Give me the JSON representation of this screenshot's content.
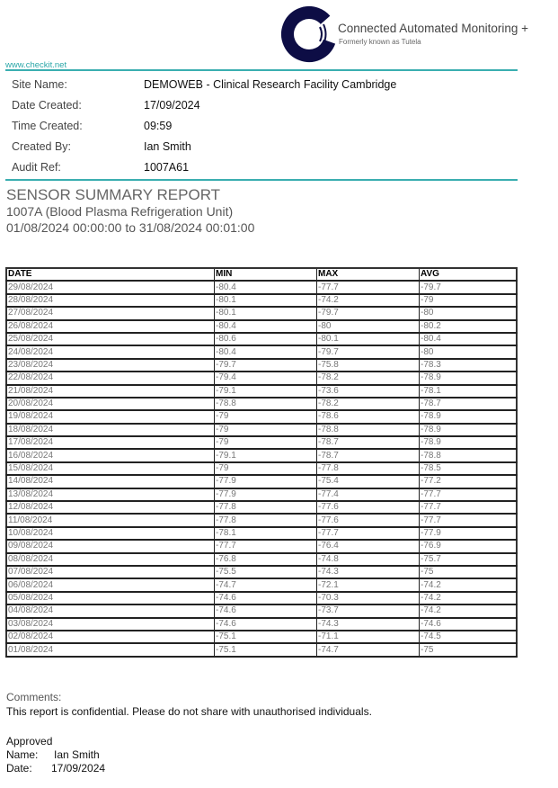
{
  "header": {
    "brand": "Connected Automated Monitoring +",
    "brand_sub": "Formerly known as Tutela",
    "website": "www.checkit.net",
    "accent": "#3aaeb0",
    "logo_color": "#0d0d45"
  },
  "info": [
    {
      "label": "Site Name:",
      "value": "DEMOWEB - Clinical Research Facility Cambridge"
    },
    {
      "label": "Date Created:",
      "value": "17/09/2024"
    },
    {
      "label": "Time Created:",
      "value": "09:59"
    },
    {
      "label": "Created By:",
      "value": "Ian Smith"
    },
    {
      "label": "Audit Ref:",
      "value": "1007A61"
    }
  ],
  "report": {
    "title": "SENSOR SUMMARY REPORT",
    "sensor": "1007A (Blood Plasma Refrigeration Unit)",
    "range": "01/08/2024 00:00:00 to 31/08/2024 00:01:00"
  },
  "table": {
    "headers": [
      "DATE",
      "MIN",
      "MAX",
      "AVG"
    ],
    "rows": [
      [
        "29/08/2024",
        "-80.4",
        "-77.7",
        "-79.7"
      ],
      [
        "28/08/2024",
        "-80.1",
        "-74.2",
        "-79"
      ],
      [
        "27/08/2024",
        "-80.1",
        "-79.7",
        "-80"
      ],
      [
        "26/08/2024",
        "-80.4",
        "-80",
        "-80.2"
      ],
      [
        "25/08/2024",
        "-80.6",
        "-80.1",
        "-80.4"
      ],
      [
        "24/08/2024",
        "-80.4",
        "-79.7",
        "-80"
      ],
      [
        "23/08/2024",
        "-79.7",
        "-75.8",
        "-78.3"
      ],
      [
        "22/08/2024",
        "-79.4",
        "-78.2",
        "-78.9"
      ],
      [
        "21/08/2024",
        "-79.1",
        "-73.6",
        "-78.1"
      ],
      [
        "20/08/2024",
        "-78.8",
        "-78.2",
        "-78.7"
      ],
      [
        "19/08/2024",
        "-79",
        "-78.6",
        "-78.9"
      ],
      [
        "18/08/2024",
        "-79",
        "-78.8",
        "-78.9"
      ],
      [
        "17/08/2024",
        "-79",
        "-78.7",
        "-78.9"
      ],
      [
        "16/08/2024",
        "-79.1",
        "-78.7",
        "-78.8"
      ],
      [
        "15/08/2024",
        "-79",
        "-77.8",
        "-78.5"
      ],
      [
        "14/08/2024",
        "-77.9",
        "-75.4",
        "-77.2"
      ],
      [
        "13/08/2024",
        "-77.9",
        "-77.4",
        "-77.7"
      ],
      [
        "12/08/2024",
        "-77.8",
        "-77.6",
        "-77.7"
      ],
      [
        "11/08/2024",
        "-77.8",
        "-77.6",
        "-77.7"
      ],
      [
        "10/08/2024",
        "-78.1",
        "-77.7",
        "-77.9"
      ],
      [
        "09/08/2024",
        "-77.7",
        "-76.4",
        "-76.9"
      ],
      [
        "08/08/2024",
        "-76.8",
        "-74.8",
        "-75.7"
      ],
      [
        "07/08/2024",
        "-75.5",
        "-74.3",
        "-75"
      ],
      [
        "06/08/2024",
        "-74.7",
        "-72.1",
        "-74.2"
      ],
      [
        "05/08/2024",
        "-74.6",
        "-70.3",
        "-74.2"
      ],
      [
        "04/08/2024",
        "-74.6",
        "-73.7",
        "-74.2"
      ],
      [
        "03/08/2024",
        "-74.6",
        "-74.3",
        "-74.6"
      ],
      [
        "02/08/2024",
        "-75.1",
        "-71.1",
        "-74.5"
      ],
      [
        "01/08/2024",
        "-75.1",
        "-74.7",
        "-75"
      ]
    ]
  },
  "footer": {
    "comments_label": "Comments:",
    "comments": "This report is confidential. Please do not share with unauthorised individuals.",
    "approved_label": "Approved",
    "name_label": "Name:",
    "name": "Ian Smith",
    "date_label": "Date:",
    "date": "17/09/2024"
  }
}
